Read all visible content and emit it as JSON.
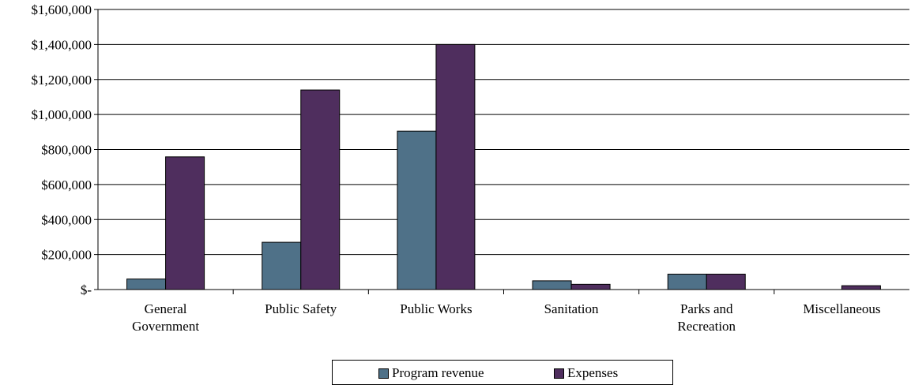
{
  "chart_data": {
    "type": "bar",
    "categories": [
      [
        "General",
        "Government"
      ],
      [
        "Public Safety"
      ],
      [
        "Public Works"
      ],
      [
        "Sanitation"
      ],
      [
        "Parks and",
        "Recreation"
      ],
      [
        "Miscellaneous"
      ]
    ],
    "series": [
      {
        "name": "Program revenue",
        "color": "#4f7188",
        "values": [
          60000,
          270000,
          905000,
          50000,
          88000,
          0
        ]
      },
      {
        "name": "Expenses",
        "color": "#4f2e5e",
        "values": [
          758000,
          1140000,
          1400000,
          30000,
          88000,
          22000
        ]
      }
    ],
    "ylim": [
      0,
      1600000
    ],
    "yticks": [
      0,
      200000,
      400000,
      600000,
      800000,
      1000000,
      1200000,
      1400000,
      1600000
    ],
    "ytick_labels": [
      "$-",
      "$200,000",
      "$400,000",
      "$600,000",
      "$800,000",
      "$1,000,000",
      "$1,200,000",
      "$1,400,000",
      "$1,600,000"
    ],
    "grid": true,
    "legend_position": "bottom",
    "title": "",
    "xlabel": "",
    "ylabel": ""
  },
  "legend": {
    "items": [
      {
        "label": "Program revenue",
        "color": "#4f7188"
      },
      {
        "label": "Expenses",
        "color": "#4f2e5e"
      }
    ]
  }
}
